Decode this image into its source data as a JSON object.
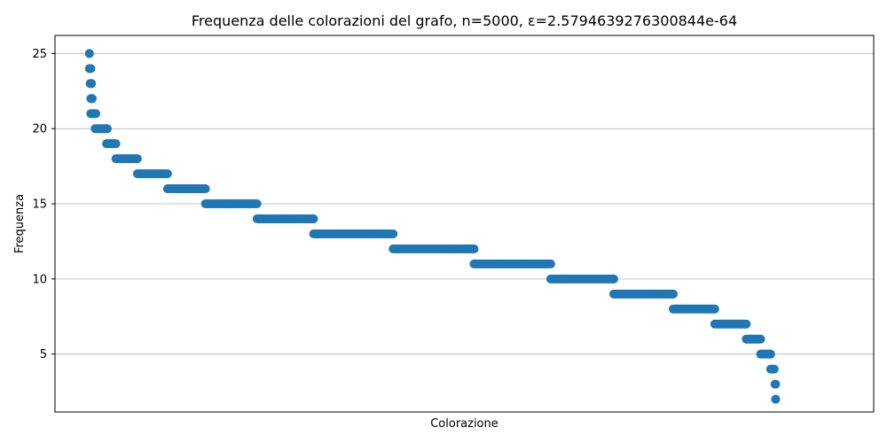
{
  "chart_data": {
    "type": "scatter",
    "title": "Frequenza delle colorazioni del grafo, n=5000, ε=2.5794639276300844e-64",
    "xlabel": "Colorazione",
    "ylabel": "Frequenza",
    "ylim": [
      1.15,
      26.2
    ],
    "xlim": [
      0,
      1
    ],
    "x_tick_labels": [],
    "y_ticks": [
      5,
      10,
      15,
      20,
      25
    ],
    "grid": "horizontal",
    "legend": "none",
    "marker_color": "#1f77b4",
    "frequency_runs": [
      {
        "frequency": 25,
        "x_start": 0.048,
        "x_end": 0.048
      },
      {
        "frequency": 24,
        "x_start": 0.048,
        "x_end": 0.05
      },
      {
        "frequency": 23,
        "x_start": 0.049,
        "x_end": 0.051
      },
      {
        "frequency": 22,
        "x_start": 0.05,
        "x_end": 0.052
      },
      {
        "frequency": 21,
        "x_start": 0.05,
        "x_end": 0.057
      },
      {
        "frequency": 20,
        "x_start": 0.056,
        "x_end": 0.073
      },
      {
        "frequency": 19,
        "x_start": 0.072,
        "x_end": 0.085
      },
      {
        "frequency": 18,
        "x_start": 0.085,
        "x_end": 0.115
      },
      {
        "frequency": 17,
        "x_start": 0.115,
        "x_end": 0.157
      },
      {
        "frequency": 16,
        "x_start": 0.157,
        "x_end": 0.21
      },
      {
        "frequency": 15,
        "x_start": 0.21,
        "x_end": 0.282
      },
      {
        "frequency": 14,
        "x_start": 0.282,
        "x_end": 0.361
      },
      {
        "frequency": 13,
        "x_start": 0.361,
        "x_end": 0.472
      },
      {
        "frequency": 12,
        "x_start": 0.472,
        "x_end": 0.585
      },
      {
        "frequency": 11,
        "x_start": 0.585,
        "x_end": 0.692
      },
      {
        "frequency": 10,
        "x_start": 0.692,
        "x_end": 0.78
      },
      {
        "frequency": 9,
        "x_start": 0.78,
        "x_end": 0.863
      },
      {
        "frequency": 8,
        "x_start": 0.863,
        "x_end": 0.921
      },
      {
        "frequency": 7,
        "x_start": 0.921,
        "x_end": 0.965
      },
      {
        "frequency": 6,
        "x_start": 0.965,
        "x_end": 0.985
      },
      {
        "frequency": 5,
        "x_start": 0.985,
        "x_end": 0.999
      },
      {
        "frequency": 4,
        "x_start": 0.999,
        "x_end": 1.004
      },
      {
        "frequency": 3,
        "x_start": 1.005,
        "x_end": 1.006
      },
      {
        "frequency": 2,
        "x_start": 1.006,
        "x_end": 1.006
      }
    ]
  }
}
